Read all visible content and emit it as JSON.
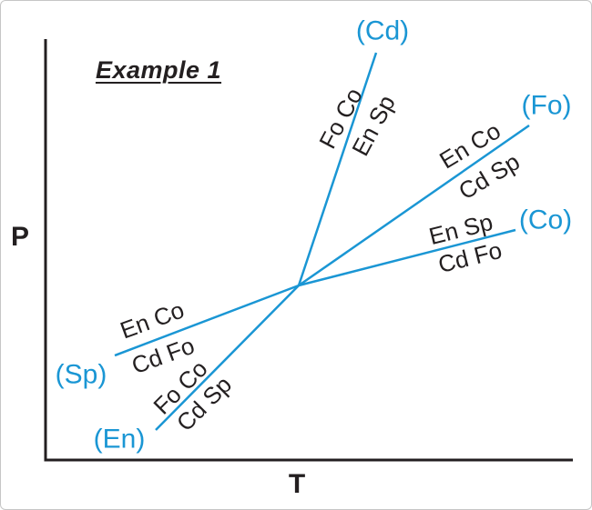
{
  "figure": {
    "background": "#ffffff",
    "border_color": "#c6c6c6"
  },
  "chart_data": {
    "type": "line",
    "description": "Schreinemakers P-T phase diagram: five univariant reaction curves radiating from a single invariant point. Each curve is labeled with its absent phase in parentheses (blue) and the reaction assemblages on either side (black).",
    "title": "Example 1",
    "xlabel": "T",
    "ylabel": "P",
    "grid": false,
    "axes_color": "#231f20",
    "curve_color": "#1a96d4",
    "reaction_label_color": "#231f20",
    "phase_label_color": "#1a96d4",
    "frame": {
      "y_axis_top": [
        49,
        42
      ],
      "origin": [
        49,
        505
      ],
      "x_axis_right": [
        628,
        505
      ]
    },
    "invariant_point": [
      327,
      313
    ],
    "rays": [
      {
        "absent_phase": "(Cd)",
        "end": [
          412,
          57
        ],
        "phase_label_pos": [
          419,
          33
        ],
        "side_a": {
          "text": "Fo Co",
          "pos": [
            373,
            129
          ]
        },
        "side_b": {
          "text": "En Sp",
          "pos": [
            409,
            137
          ]
        },
        "text_angle": -62
      },
      {
        "absent_phase": "(Fo)",
        "end": [
          580,
          137
        ],
        "phase_label_pos": [
          599,
          115
        ],
        "side_a": {
          "text": "En Co",
          "pos": [
            515,
            159
          ]
        },
        "side_b": {
          "text": "Cd Sp",
          "pos": [
            536,
            193
          ]
        },
        "text_angle": -31
      },
      {
        "absent_phase": "(Co)",
        "end": [
          565,
          252
        ],
        "phase_label_pos": [
          598,
          241
        ],
        "side_a": {
          "text": "En Sp",
          "pos": [
            505,
            251
          ]
        },
        "side_b": {
          "text": "Cd Fo",
          "pos": [
            515,
            282
          ]
        },
        "text_angle": -14
      },
      {
        "absent_phase": "(Sp)",
        "end": [
          125,
          390
        ],
        "phase_label_pos": [
          88,
          411
        ],
        "side_a": {
          "text": "En Co",
          "pos": [
            166,
            351
          ]
        },
        "side_b": {
          "text": "Cd Fo",
          "pos": [
            178,
            390
          ]
        },
        "text_angle": -20
      },
      {
        "absent_phase": "(En)",
        "end": [
          170,
          472
        ],
        "phase_label_pos": [
          130,
          482
        ],
        "side_a": {
          "text": "Fo Co",
          "pos": [
            197,
            425
          ]
        },
        "side_b": {
          "text": "Cd Sp",
          "pos": [
            223,
            443
          ]
        },
        "text_angle": -45
      }
    ]
  }
}
